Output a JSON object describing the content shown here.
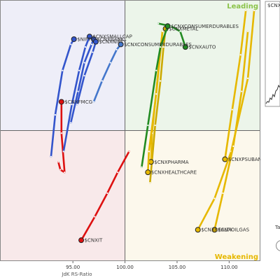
{
  "chart_data": {
    "type": "scatter",
    "subtype": "relative-rotation-graph",
    "xlabel": "JdK RS-Ratio",
    "xlim": [
      88.0,
      113.0
    ],
    "ylim": [
      95.0,
      105.0
    ],
    "xticks": [
      "95.00",
      "100.00",
      "105.00",
      "110.00"
    ],
    "center": [
      100,
      100
    ],
    "quadrants": {
      "leading": {
        "label": "Leading",
        "color": "#8bc34a",
        "bg": "#ecf5ea"
      },
      "weakening": {
        "label": "Weakening",
        "color": "#e6b800",
        "bg": "#fcf8ec"
      },
      "lagging": {
        "label": "",
        "bg": "#f8e9ea"
      },
      "improving": {
        "label": "",
        "bg": "#eeeef8"
      }
    },
    "series": [
      {
        "name": "$CNXMETAL",
        "color": "#ccaa00",
        "points": [
          [
            102.4,
            98.0
          ],
          [
            102.9,
            100.2
          ],
          [
            103.4,
            101.9
          ],
          [
            103.7,
            103.2
          ],
          [
            103.9,
            103.9
          ]
        ]
      },
      {
        "name": "$CNXAUTO",
        "color": "#228b22",
        "points": [
          [
            103.2,
            104.1
          ],
          [
            104.4,
            104.0
          ],
          [
            105.3,
            103.8
          ],
          [
            105.8,
            103.2
          ]
        ]
      },
      {
        "name": "$CNXPHARMA",
        "color": "#e6b800",
        "points": [
          [
            103.6,
            103.8
          ],
          [
            103.1,
            101.9
          ],
          [
            102.6,
            99.9
          ],
          [
            102.5,
            98.8
          ]
        ]
      },
      {
        "name": "$CNXHEALTHCARE",
        "color": "#e6b800",
        "points": [
          [
            103.6,
            103.8
          ],
          [
            103.0,
            101.4
          ],
          [
            102.3,
            99.2
          ],
          [
            102.2,
            98.4
          ]
        ]
      },
      {
        "name": "$CNXPSUBANK",
        "color": "#e6b800",
        "points": [
          [
            111.6,
            104.6
          ],
          [
            111.1,
            102.9
          ],
          [
            110.3,
            100.8
          ],
          [
            109.6,
            98.9
          ]
        ]
      },
      {
        "name": "$CNXREALTY",
        "color": "#e6b800",
        "points": [
          [
            112.4,
            104.6
          ],
          [
            111.8,
            102.0
          ],
          [
            110.2,
            99.2
          ],
          [
            108.6,
            97.4
          ],
          [
            107.0,
            96.2
          ]
        ]
      },
      {
        "name": "$CNXOILGAS",
        "color": "#e6b800",
        "points": [
          [
            111.8,
            103.8
          ],
          [
            111.2,
            101.5
          ],
          [
            110.4,
            99.4
          ],
          [
            109.4,
            97.6
          ],
          [
            108.6,
            96.2
          ]
        ]
      },
      {
        "name": "$CNXCONSUMERDURABLES",
        "color": "#228b22",
        "points": [
          [
            101.6,
            98.6
          ],
          [
            102.2,
            100.2
          ],
          [
            103.0,
            102.3
          ],
          [
            103.4,
            103.2
          ],
          [
            104.1,
            104.0
          ]
        ]
      },
      {
        "name": "$CNXIT",
        "color": "#dd1111",
        "points": [
          [
            100.4,
            99.2
          ],
          [
            99.3,
            98.4
          ],
          [
            98.3,
            97.6
          ],
          [
            97.1,
            96.7
          ],
          [
            95.8,
            95.8
          ]
        ]
      },
      {
        "name": "$CNXFMCG",
        "color": "#dd1111",
        "points": [
          [
            93.6,
            98.8
          ],
          [
            93.8,
            98.5
          ],
          [
            94.2,
            98.4
          ],
          [
            93.9,
            99.9
          ],
          [
            93.9,
            101.1
          ]
        ]
      },
      {
        "name": "$NIFTY",
        "color": "#3355cc",
        "points": [
          [
            92.9,
            99.0
          ],
          [
            93.3,
            100.6
          ],
          [
            94.0,
            102.3
          ],
          [
            94.8,
            103.3
          ],
          [
            95.1,
            103.5
          ]
        ]
      },
      {
        "name": "$CNXSMALLCAP",
        "color": "#3355cc",
        "points": [
          [
            94.1,
            99.2
          ],
          [
            94.9,
            101.0
          ],
          [
            95.6,
            102.3
          ],
          [
            96.2,
            103.2
          ],
          [
            96.6,
            103.6
          ]
        ]
      },
      {
        "name": "$CNXBANK",
        "color": "#3355cc",
        "points": [
          [
            94.8,
            100.3
          ],
          [
            95.5,
            101.5
          ],
          [
            96.1,
            102.6
          ],
          [
            96.8,
            103.3
          ],
          [
            97.0,
            103.5
          ]
        ]
      },
      {
        "name": "$CNXNIFTY",
        "color": "#3355cc",
        "points": [
          [
            95.4,
            101.0
          ],
          [
            96.1,
            102.1
          ],
          [
            96.9,
            103.0
          ],
          [
            97.2,
            103.4
          ]
        ]
      },
      {
        "name": "$CNXCONSUMERDURABLES",
        "color": "#4477cc",
        "points": [
          [
            97.0,
            101.1
          ],
          [
            97.8,
            101.9
          ],
          [
            98.6,
            102.6
          ],
          [
            99.2,
            103.1
          ],
          [
            99.6,
            103.3
          ]
        ]
      }
    ],
    "grid": false,
    "legend": "none"
  },
  "sidebar": {
    "symbol": "$CNX",
    "truncated_label": "Ta"
  }
}
